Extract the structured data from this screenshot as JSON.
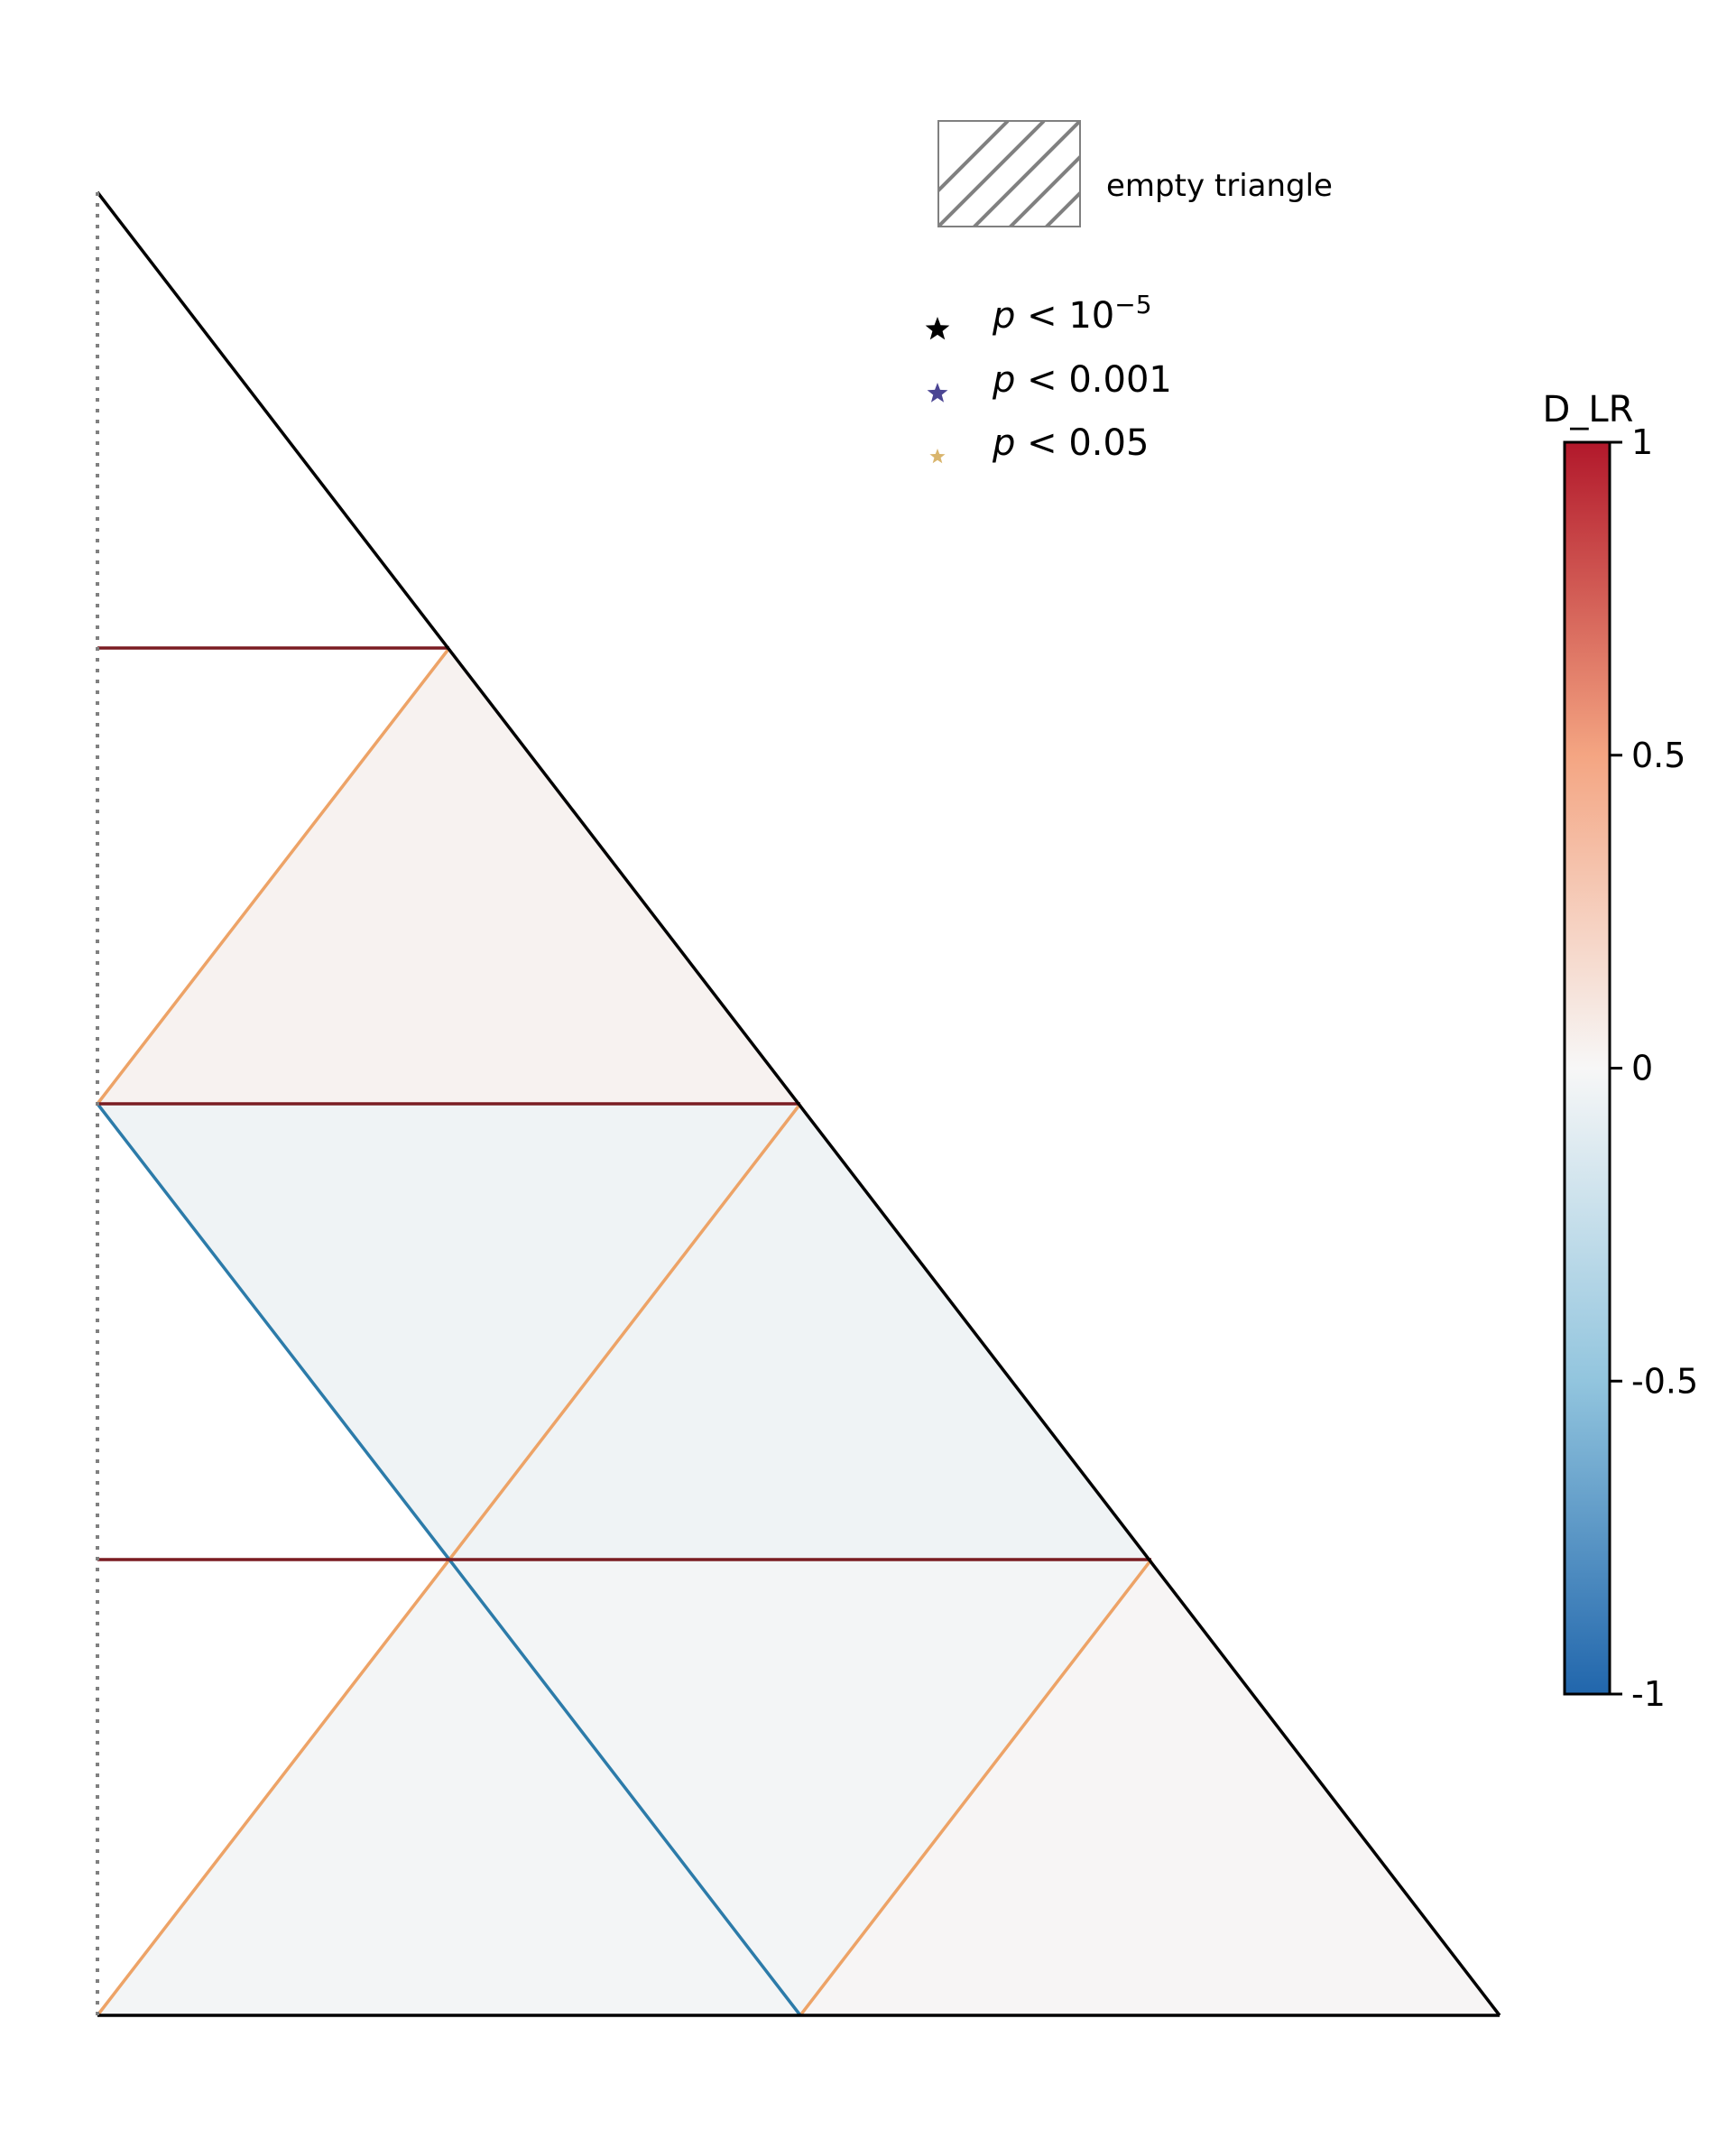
{
  "chart_data": {
    "type": "ternary",
    "colorbar": {
      "title": "D_LR",
      "range": [
        -1,
        1
      ],
      "ticks": [
        1,
        0.5,
        0,
        -0.5,
        -1
      ],
      "tick_labels": [
        "1",
        "0.5",
        "0",
        "-0.5",
        "-1"
      ],
      "colors": {
        "high": "#b2182b",
        "mid_high": "#f4a582",
        "mid": "#f7f7f7",
        "mid_low": "#92c5de",
        "low": "#2166ac"
      }
    },
    "legend": {
      "empty_label": "empty triangle",
      "significance": [
        {
          "symbol": "star",
          "color": "#000000",
          "prefix": "p",
          "op": "<",
          "value": "10",
          "exponent": "−5"
        },
        {
          "symbol": "star",
          "color": "#4b4593",
          "prefix": "p",
          "op": "<",
          "value": "0.001",
          "exponent": ""
        },
        {
          "symbol": "star",
          "color": "#d9b56d",
          "prefix": "p",
          "op": "<",
          "value": "0.05",
          "exponent": ""
        }
      ]
    },
    "grid": {
      "subdivisions": 4,
      "triangles": [
        {
          "row": 0,
          "col": 0,
          "orientation": "up",
          "d_lr": -0.02
        },
        {
          "row": 0,
          "col": 1,
          "orientation": "down",
          "d_lr": -0.04
        },
        {
          "row": 0,
          "col": 2,
          "orientation": "up",
          "d_lr": 0.01
        },
        {
          "row": 1,
          "col": 0,
          "orientation": "up",
          "d_lr": -0.04
        },
        {
          "row": 1,
          "col": 1,
          "orientation": "down",
          "d_lr": -0.02
        },
        {
          "row": 2,
          "col": 0,
          "orientation": "up",
          "d_lr": 0.03
        }
      ]
    },
    "boundary_colors": {
      "outline": "#000000",
      "horizontal": "#7a1c22",
      "rising": "#eda367",
      "falling": "#2c7ba9",
      "left_edge": "#808080"
    }
  }
}
